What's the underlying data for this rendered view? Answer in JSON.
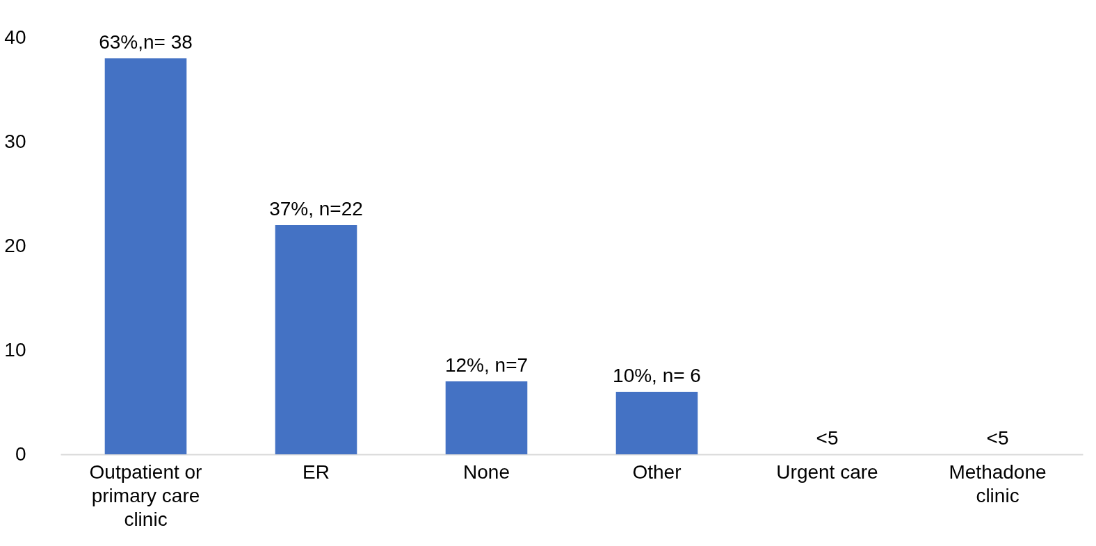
{
  "chart_data": {
    "type": "bar",
    "categories": [
      "Outpatient or primary care clinic",
      "ER",
      "None",
      "Other",
      "Urgent care",
      "Methadone clinic"
    ],
    "values": [
      38,
      22,
      7,
      6,
      null,
      null
    ],
    "value_labels": [
      "63%,n= 38",
      "37%, n=22",
      "12%, n=7",
      "10%, n= 6",
      "<5",
      "<5"
    ],
    "color": "#4472c4",
    "ylim": [
      0,
      40
    ],
    "yticks": [
      0,
      10,
      20,
      30,
      40
    ],
    "grid": false
  }
}
